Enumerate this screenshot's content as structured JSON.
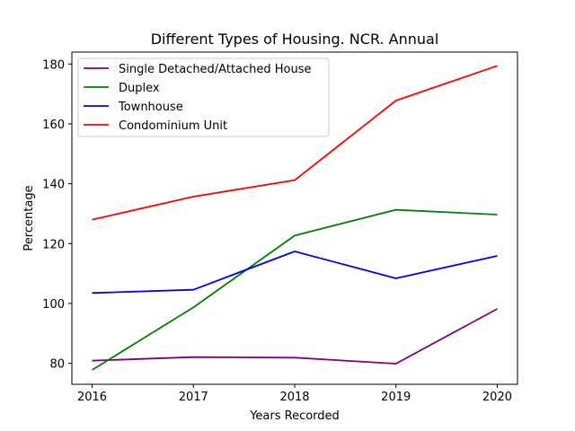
{
  "chart_data": {
    "type": "line",
    "title": "Different Types of Housing. NCR. Annual",
    "xlabel": "Years Recorded",
    "ylabel": "Percentage",
    "x": [
      "2016",
      "2017",
      "2018",
      "2019",
      "2020"
    ],
    "xlim": [
      2015.8,
      2020.2
    ],
    "ylim": [
      73,
      184
    ],
    "yticks": [
      "80",
      "100",
      "120",
      "140",
      "160",
      "180"
    ],
    "grid": false,
    "legend_position": "top-left",
    "series": [
      {
        "name": "Single Detached/Attached House",
        "color": "#800080",
        "values": [
          80.9,
          82.1,
          81.9,
          79.9,
          98.2
        ]
      },
      {
        "name": "Duplex",
        "color": "#008000",
        "values": [
          77.8,
          98.7,
          122.7,
          131.3,
          129.7
        ]
      },
      {
        "name": "Townhouse",
        "color": "#0000ff",
        "values": [
          103.5,
          104.6,
          117.4,
          108.4,
          115.9
        ]
      },
      {
        "name": "Condominium Unit",
        "color": "#ff0000",
        "values": [
          128.0,
          135.7,
          141.2,
          167.8,
          179.4
        ]
      }
    ]
  }
}
